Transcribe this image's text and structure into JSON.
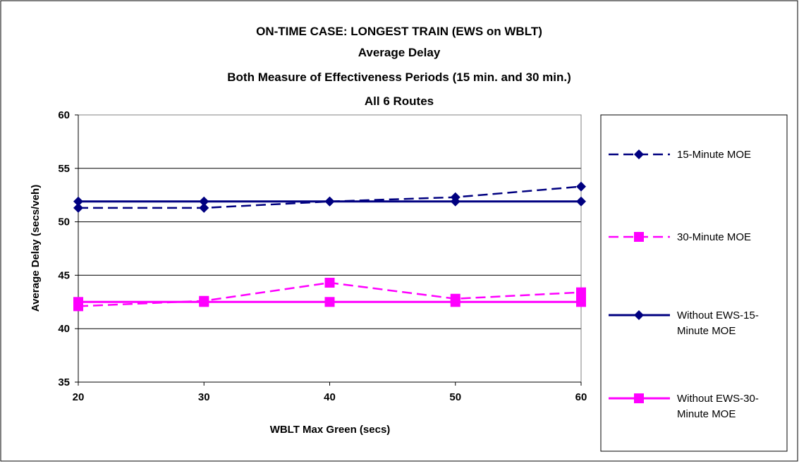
{
  "chart_data": {
    "type": "line",
    "title_lines": [
      "ON-TIME CASE:  LONGEST TRAIN (EWS on WBLT)",
      "Average Delay",
      "Both Measure of Effectiveness Periods (15 min. and 30 min.)",
      "All 6 Routes"
    ],
    "xlabel": "WBLT Max Green (secs)",
    "ylabel": "Average Delay (secs/veh)",
    "x": [
      20,
      30,
      40,
      50,
      60
    ],
    "xlim": [
      20,
      60
    ],
    "ylim": [
      35,
      60
    ],
    "x_ticks": [
      "20",
      "30",
      "40",
      "50",
      "60"
    ],
    "y_ticks": [
      "35",
      "40",
      "45",
      "50",
      "55",
      "60"
    ],
    "grid": "horizontal",
    "legend_position": "right",
    "series": [
      {
        "name": "15-Minute MOE",
        "values": [
          51.3,
          51.3,
          51.9,
          52.3,
          53.3
        ],
        "color": "#000080",
        "marker": "diamond",
        "line_style": "dashed"
      },
      {
        "name": "30-Minute MOE",
        "values": [
          42.1,
          42.6,
          44.3,
          42.8,
          43.4
        ],
        "color": "#ff00ff",
        "marker": "square",
        "line_style": "dashed"
      },
      {
        "name": "Without EWS-15-Minute MOE",
        "values": [
          51.9,
          51.9,
          51.9,
          51.9,
          51.9
        ],
        "color": "#000080",
        "marker": "diamond",
        "line_style": "solid"
      },
      {
        "name": "Without EWS-30-Minute MOE",
        "values": [
          42.5,
          42.5,
          42.5,
          42.5,
          42.5
        ],
        "color": "#ff00ff",
        "marker": "square",
        "line_style": "solid"
      }
    ],
    "legend_lines": [
      [
        "15-Minute MOE"
      ],
      [
        "30-Minute MOE"
      ],
      [
        "Without EWS-15-",
        "Minute MOE"
      ],
      [
        "Without EWS-30-",
        "Minute MOE"
      ]
    ]
  }
}
